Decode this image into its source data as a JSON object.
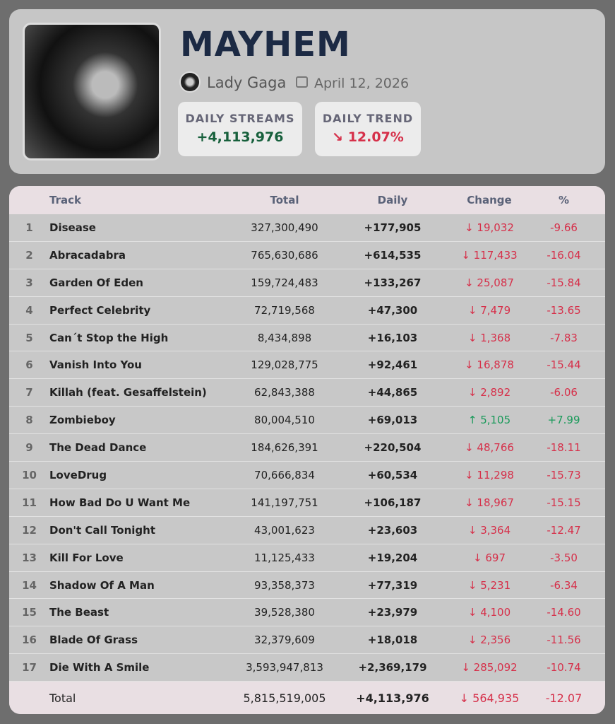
{
  "header": {
    "title": "MAYHEM",
    "artist": "Lady Gaga",
    "date": "April 12, 2026",
    "stats": [
      {
        "label": "DAILY STREAMS",
        "value": "+4,113,976"
      },
      {
        "label": "DAILY TREND",
        "value": "↘ 12.07%"
      }
    ]
  },
  "table": {
    "columns": [
      "Track",
      "Total",
      "Daily",
      "Change",
      "%"
    ],
    "rows": [
      [
        "1",
        "Disease",
        "327,300,490",
        "+177,905",
        "↓ 19,032",
        "-9.66"
      ],
      [
        "2",
        "Abracadabra",
        "765,630,686",
        "+614,535",
        "↓ 117,433",
        "-16.04"
      ],
      [
        "3",
        "Garden Of Eden",
        "159,724,483",
        "+133,267",
        "↓ 25,087",
        "-15.84"
      ],
      [
        "4",
        "Perfect Celebrity",
        "72,719,568",
        "+47,300",
        "↓ 7,479",
        "-13.65"
      ],
      [
        "5",
        "Can´t Stop the High",
        "8,434,898",
        "+16,103",
        "↓ 1,368",
        "-7.83"
      ],
      [
        "6",
        "Vanish Into You",
        "129,028,775",
        "+92,461",
        "↓ 16,878",
        "-15.44"
      ],
      [
        "7",
        "Killah (feat. Gesaffelstein)",
        "62,843,388",
        "+44,865",
        "↓ 2,892",
        "-6.06"
      ],
      [
        "8",
        "Zombieboy",
        "80,004,510",
        "+69,013",
        "↑ 5,105",
        "+7.99"
      ],
      [
        "9",
        "The Dead Dance",
        "184,626,391",
        "+220,504",
        "↓ 48,766",
        "-18.11"
      ],
      [
        "10",
        "LoveDrug",
        "70,666,834",
        "+60,534",
        "↓ 11,298",
        "-15.73"
      ],
      [
        "11",
        "How Bad Do U Want Me",
        "141,197,751",
        "+106,187",
        "↓ 18,967",
        "-15.15"
      ],
      [
        "12",
        "Don't Call Tonight",
        "43,001,623",
        "+23,603",
        "↓ 3,364",
        "-12.47"
      ],
      [
        "13",
        "Kill For Love",
        "11,125,433",
        "+19,204",
        "↓ 697",
        "-3.50"
      ],
      [
        "14",
        "Shadow Of A Man",
        "93,358,373",
        "+77,319",
        "↓ 5,231",
        "-6.34"
      ],
      [
        "15",
        "The Beast",
        "39,528,380",
        "+23,979",
        "↓ 4,100",
        "-14.60"
      ],
      [
        "16",
        "Blade Of Grass",
        "32,379,609",
        "+18,018",
        "↓ 2,356",
        "-11.56"
      ],
      [
        "17",
        "Die With A Smile",
        "3,593,947,813",
        "+2,369,179",
        "↓ 285,092",
        "-10.74"
      ]
    ],
    "total": [
      "Total",
      "5,815,519,005",
      "+4,113,976",
      "↓ 564,935",
      "-12.07"
    ]
  }
}
